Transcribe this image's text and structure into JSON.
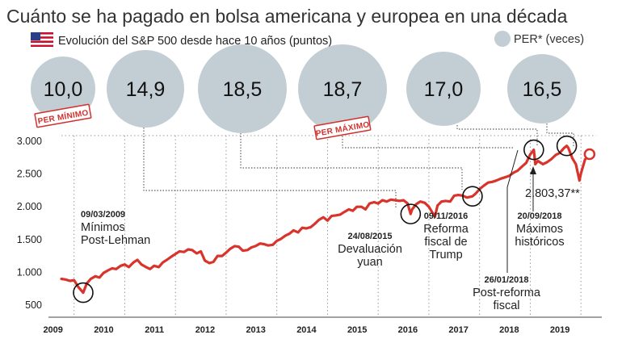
{
  "header": {
    "title": "Cuánto se ha pagado en bolsa americana y europea en una década",
    "subtitle": "Evolución del S&P 500 desde hace 10 años (puntos)",
    "flag_icon": "us-flag-icon"
  },
  "legend": {
    "label": "PER* (veces)",
    "color": "#c3ced4"
  },
  "colors": {
    "line": "#d9342b",
    "bubble": "#c3ced4",
    "stamp": "#d0312d",
    "grid": "#9a9a9a"
  },
  "per_bubbles": [
    {
      "value": "10,0",
      "stamp": "PER MÍNIMO"
    },
    {
      "value": "14,9"
    },
    {
      "value": "18,5"
    },
    {
      "value": "18,7",
      "stamp": "PER MÁXIMO"
    },
    {
      "value": "17,0"
    },
    {
      "value": "16,5"
    }
  ],
  "annotations": [
    {
      "date": "09/03/2009",
      "lines": [
        "Mínimos",
        "Post-Lehman"
      ]
    },
    {
      "date": "24/08/2015",
      "lines": [
        "Devaluación",
        "yuan"
      ]
    },
    {
      "date": "09/11/2016",
      "lines": [
        "Reforma",
        "fiscal de",
        "Trump"
      ]
    },
    {
      "date": "26/01/2018",
      "lines": [
        "Post-reforma",
        "fiscal"
      ]
    },
    {
      "date": "20/09/2018",
      "lines": [
        "Máximos",
        "históricos"
      ]
    }
  ],
  "last_value_label": "2.803,37**",
  "chart_data": {
    "type": "line",
    "title": "Cuánto se ha pagado en bolsa americana y europea en una década",
    "subtitle": "Evolución del S&P 500 desde hace 10 años (puntos)",
    "xlabel": "",
    "ylabel": "",
    "ylim": [
      500,
      3000
    ],
    "xlim": [
      2008.75,
      2019.3
    ],
    "y_ticks": [
      500,
      1000,
      1500,
      2000,
      2500,
      3000
    ],
    "y_tick_labels": [
      "500",
      "1.000",
      "1.500",
      "2.000",
      "2.500",
      "3.000"
    ],
    "x_ticks": [
      2009,
      2010,
      2011,
      2012,
      2013,
      2014,
      2015,
      2016,
      2017,
      2018,
      2019
    ],
    "x_tick_labels": [
      "2009",
      "2010",
      "2011",
      "2012",
      "2013",
      "2014",
      "2015",
      "2016",
      "2017",
      "2018",
      "2019"
    ],
    "grid": "vertical dotted",
    "series": [
      {
        "values_x": [
          2008.75,
          2008.83,
          2008.92,
          2009.0,
          2009.08,
          2009.18,
          2009.25,
          2009.33,
          2009.42,
          2009.5,
          2009.58,
          2009.67,
          2009.75,
          2009.83,
          2009.92,
          2010.0,
          2010.08,
          2010.17,
          2010.25,
          2010.33,
          2010.42,
          2010.5,
          2010.58,
          2010.67,
          2010.75,
          2010.83,
          2010.92,
          2011.0,
          2011.08,
          2011.17,
          2011.25,
          2011.33,
          2011.42,
          2011.5,
          2011.58,
          2011.67,
          2011.75,
          2011.83,
          2011.92,
          2012.0,
          2012.08,
          2012.17,
          2012.25,
          2012.33,
          2012.42,
          2012.5,
          2012.58,
          2012.67,
          2012.75,
          2012.83,
          2012.92,
          2013.0,
          2013.08,
          2013.17,
          2013.25,
          2013.33,
          2013.42,
          2013.5,
          2013.58,
          2013.67,
          2013.75,
          2013.83,
          2013.92,
          2014.0,
          2014.08,
          2014.17,
          2014.25,
          2014.33,
          2014.42,
          2014.5,
          2014.58,
          2014.67,
          2014.75,
          2014.83,
          2014.92,
          2015.0,
          2015.08,
          2015.17,
          2015.25,
          2015.33,
          2015.42,
          2015.5,
          2015.58,
          2015.64,
          2015.67,
          2015.75,
          2015.83,
          2015.92,
          2016.0,
          2016.08,
          2016.12,
          2016.17,
          2016.25,
          2016.33,
          2016.42,
          2016.5,
          2016.58,
          2016.67,
          2016.75,
          2016.86,
          2016.92,
          2017.0,
          2017.08,
          2017.17,
          2017.25,
          2017.33,
          2017.42,
          2017.5,
          2017.58,
          2017.67,
          2017.75,
          2017.83,
          2017.92,
          2018.0,
          2018.07,
          2018.1,
          2018.15,
          2018.25,
          2018.33,
          2018.42,
          2018.5,
          2018.58,
          2018.67,
          2018.72,
          2018.75,
          2018.83,
          2018.9,
          2018.97,
          2019.0,
          2019.08,
          2019.17
        ],
        "values_y": [
          900,
          890,
          870,
          880,
          780,
          690,
          830,
          900,
          940,
          920,
          990,
          1030,
          1060,
          1050,
          1100,
          1120,
          1080,
          1150,
          1190,
          1120,
          1080,
          1050,
          1100,
          1080,
          1150,
          1190,
          1240,
          1280,
          1320,
          1310,
          1350,
          1340,
          1290,
          1320,
          1180,
          1140,
          1160,
          1250,
          1250,
          1300,
          1360,
          1400,
          1390,
          1330,
          1340,
          1380,
          1400,
          1440,
          1430,
          1410,
          1420,
          1480,
          1510,
          1560,
          1590,
          1640,
          1610,
          1680,
          1670,
          1690,
          1740,
          1800,
          1840,
          1790,
          1860,
          1870,
          1880,
          1920,
          1960,
          1940,
          2000,
          2000,
          1960,
          2050,
          2070,
          2050,
          2100,
          2080,
          2110,
          2100,
          2090,
          2100,
          2050,
          1890,
          1960,
          2040,
          2080,
          2060,
          2000,
          1900,
          1850,
          2020,
          2080,
          2090,
          2080,
          2170,
          2180,
          2170,
          2140,
          2160,
          2200,
          2270,
          2320,
          2370,
          2380,
          2400,
          2430,
          2450,
          2470,
          2520,
          2550,
          2610,
          2670,
          2800,
          2870,
          2650,
          2700,
          2650,
          2680,
          2730,
          2790,
          2820,
          2900,
          2930,
          2900,
          2740,
          2650,
          2400,
          2510,
          2720,
          2800
        ]
      }
    ],
    "highlight_points": [
      {
        "x": 2009.18,
        "y": 690
      },
      {
        "x": 2015.64,
        "y": 1890
      },
      {
        "x": 2016.86,
        "y": 2160
      },
      {
        "x": 2018.07,
        "y": 2870
      },
      {
        "x": 2018.72,
        "y": 2930
      },
      {
        "x": 2019.17,
        "y": 2803.37
      }
    ]
  }
}
